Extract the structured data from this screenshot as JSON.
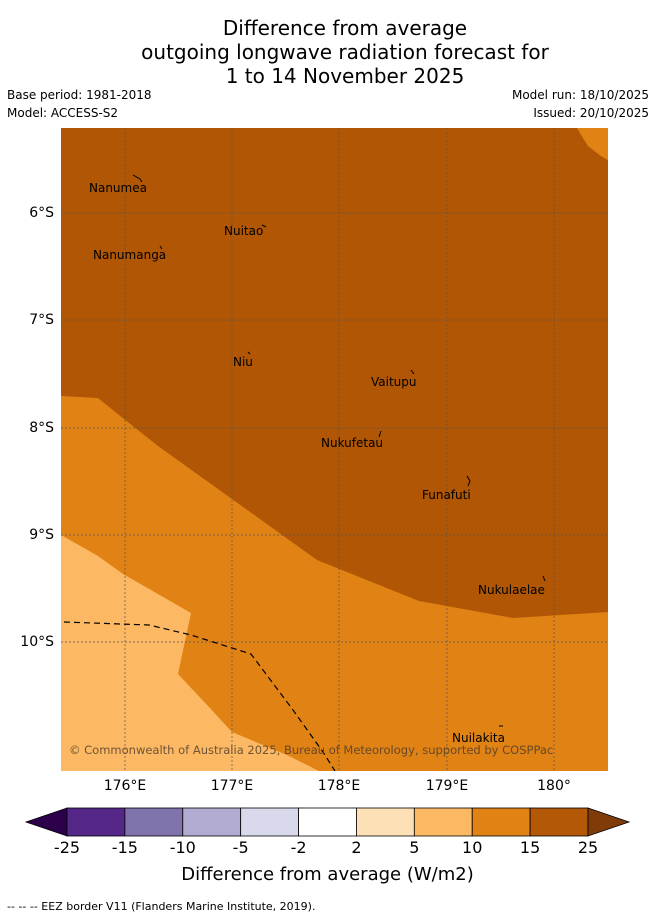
{
  "title": {
    "line1": "Difference from average",
    "line2": "outgoing longwave radiation forecast for",
    "line3": "1 to 14 November 2025"
  },
  "meta": {
    "base_period": "Base period: 1981-2018",
    "model": "Model: ACCESS-S2",
    "model_run": "Model run: 18/10/2025",
    "issued": "Issued: 20/10/2025"
  },
  "map": {
    "lat_labels": [
      "6°S",
      "7°S",
      "8°S",
      "9°S",
      "10°S"
    ],
    "lon_labels": [
      "176°E",
      "177°E",
      "178°E",
      "179°E",
      "180°"
    ],
    "places": [
      "Nanumea",
      "Nuitao",
      "Nanumanga",
      "Niu",
      "Vaitupu",
      "Nukufetau",
      "Funafuti",
      "Nukulaelae",
      "Nuilakita"
    ],
    "copyright": "© Commonwealth of Australia 2025, Bureau of Meteorology, supported by COSPPac",
    "fill_colors": {
      "band_15_25": "#b05604",
      "band_10_15": "#e08214",
      "band_5_10": "#fdb863"
    }
  },
  "colorbar": {
    "ticks": [
      "-25",
      "-15",
      "-10",
      "-5",
      "-2",
      "2",
      "5",
      "10",
      "15",
      "25"
    ],
    "colors": [
      "#2d004b",
      "#542788",
      "#8073ac",
      "#b2abd2",
      "#d8daeb",
      "#ffffff",
      "#fee0b6",
      "#fdb863",
      "#e08214",
      "#b35806",
      "#7f3b08"
    ],
    "label": "Difference from average (W/m2)"
  },
  "footnote": "-- -- -- EEZ border V11 (Flanders Marine Institute, 2019)."
}
